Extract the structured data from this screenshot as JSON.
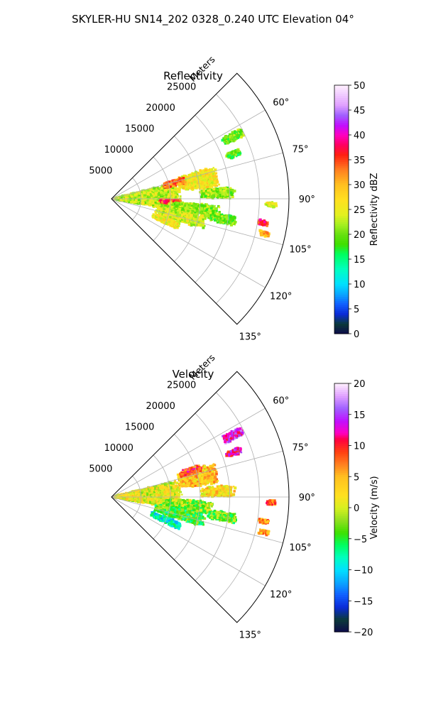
{
  "figure": {
    "suptitle": "SKYLER-HU  SN14_202  0328_0.240 UTC Elevation 04°"
  },
  "chart_data": [
    {
      "type": "polar-sector-heatmap",
      "title": "Reflectivity",
      "rlabel": "Meters",
      "theta_range_deg": [
        45,
        135
      ],
      "r_range_m": [
        0,
        30000
      ],
      "r_ticks": [
        5000,
        10000,
        15000,
        20000,
        25000
      ],
      "r_tick_labels": [
        "5000",
        "10000",
        "15000",
        "20000",
        "25000"
      ],
      "theta_ticks": [
        60,
        75,
        90,
        105,
        120,
        135
      ],
      "theta_tick_labels": [
        "60°",
        "75°",
        "90°",
        "105°",
        "120°",
        "135°"
      ],
      "grid": true,
      "colorbar": {
        "label": "Reflectivity dBZ",
        "range": [
          0,
          50
        ],
        "ticks": [
          0,
          5,
          10,
          15,
          20,
          25,
          30,
          35,
          40,
          45,
          50
        ],
        "tick_labels": [
          "0",
          "5",
          "10",
          "15",
          "20",
          "25",
          "30",
          "35",
          "40",
          "45",
          "50"
        ],
        "stops": [
          {
            "v": 0,
            "c": "#0d0a4a"
          },
          {
            "v": 2,
            "c": "#0b3a3a"
          },
          {
            "v": 4,
            "c": "#0a2bd8"
          },
          {
            "v": 6,
            "c": "#1060ff"
          },
          {
            "v": 8,
            "c": "#0aa6ff"
          },
          {
            "v": 10,
            "c": "#00e0ff"
          },
          {
            "v": 13,
            "c": "#00ffc0"
          },
          {
            "v": 16,
            "c": "#00ff60"
          },
          {
            "v": 18,
            "c": "#3ee000"
          },
          {
            "v": 20,
            "c": "#66e010"
          },
          {
            "v": 22,
            "c": "#a6f020"
          },
          {
            "v": 24,
            "c": "#e4f020"
          },
          {
            "v": 27,
            "c": "#ffe020"
          },
          {
            "v": 30,
            "c": "#ffc020"
          },
          {
            "v": 33,
            "c": "#ff8020"
          },
          {
            "v": 36,
            "c": "#ff2010"
          },
          {
            "v": 38,
            "c": "#ff0060"
          },
          {
            "v": 40,
            "c": "#ff00c0"
          },
          {
            "v": 42,
            "c": "#c010ff"
          },
          {
            "v": 44,
            "c": "#a060ff"
          },
          {
            "v": 46,
            "c": "#e0a0ff"
          },
          {
            "v": 50,
            "c": "#fff0ff"
          }
        ]
      },
      "echoes": [
        {
          "th": 88,
          "r": 6000,
          "dth": 26,
          "dr": 12000,
          "v": 23
        },
        {
          "th": 78,
          "r": 15000,
          "dth": 12,
          "dr": 7000,
          "v": 26
        },
        {
          "th": 76,
          "r": 11000,
          "dth": 6,
          "dr": 4000,
          "v": 33
        },
        {
          "th": 93,
          "r": 10000,
          "dth": 5,
          "dr": 4000,
          "v": 35
        },
        {
          "th": 97,
          "r": 14000,
          "dth": 8,
          "dr": 9000,
          "v": 21
        },
        {
          "th": 87,
          "r": 18000,
          "dth": 6,
          "dr": 6000,
          "v": 21
        },
        {
          "th": 104,
          "r": 12000,
          "dth": 9,
          "dr": 9000,
          "v": 24
        },
        {
          "th": 112,
          "r": 10000,
          "dth": 6,
          "dr": 5000,
          "v": 26
        },
        {
          "th": 63,
          "r": 23000,
          "dth": 4,
          "dr": 4000,
          "v": 20
        },
        {
          "th": 70,
          "r": 22000,
          "dth": 3,
          "dr": 3000,
          "v": 19
        },
        {
          "th": 100,
          "r": 19000,
          "dth": 5,
          "dr": 5000,
          "v": 20
        },
        {
          "th": 99,
          "r": 26000,
          "dth": 2,
          "dr": 2000,
          "v": 37
        },
        {
          "th": 103,
          "r": 26500,
          "dth": 2,
          "dr": 2000,
          "v": 30
        },
        {
          "th": 92,
          "r": 27000,
          "dth": 2,
          "dr": 2000,
          "v": 25
        }
      ]
    },
    {
      "type": "polar-sector-heatmap",
      "title": "Velocity",
      "rlabel": "Meters",
      "theta_range_deg": [
        45,
        135
      ],
      "r_range_m": [
        0,
        30000
      ],
      "r_ticks": [
        5000,
        10000,
        15000,
        20000,
        25000
      ],
      "r_tick_labels": [
        "5000",
        "10000",
        "15000",
        "20000",
        "25000"
      ],
      "theta_ticks": [
        60,
        75,
        90,
        105,
        120,
        135
      ],
      "theta_tick_labels": [
        "60°",
        "75°",
        "90°",
        "105°",
        "120°",
        "135°"
      ],
      "grid": true,
      "colorbar": {
        "label": "Velocity (m/s)",
        "range": [
          -20,
          20
        ],
        "ticks": [
          -20,
          -15,
          -10,
          -5,
          0,
          5,
          10,
          15,
          20
        ],
        "tick_labels": [
          "−20",
          "−15",
          "−10",
          "−5",
          "0",
          "5",
          "10",
          "15",
          "20"
        ],
        "stops": [
          {
            "v": -20,
            "c": "#0d0a4a"
          },
          {
            "v": -18,
            "c": "#0b3a3a"
          },
          {
            "v": -16,
            "c": "#0a2bd8"
          },
          {
            "v": -14,
            "c": "#1060ff"
          },
          {
            "v": -12,
            "c": "#0aa6ff"
          },
          {
            "v": -10,
            "c": "#00e0ff"
          },
          {
            "v": -8,
            "c": "#00ffc0"
          },
          {
            "v": -6,
            "c": "#00ff60"
          },
          {
            "v": -4,
            "c": "#3ee000"
          },
          {
            "v": -2,
            "c": "#90e020"
          },
          {
            "v": 0,
            "c": "#d8f020"
          },
          {
            "v": 2,
            "c": "#ffe020"
          },
          {
            "v": 5,
            "c": "#ffc020"
          },
          {
            "v": 7,
            "c": "#ff8020"
          },
          {
            "v": 9,
            "c": "#ff4010"
          },
          {
            "v": 11,
            "c": "#ff0040"
          },
          {
            "v": 12,
            "c": "#ff00c0"
          },
          {
            "v": 14,
            "c": "#c010ff"
          },
          {
            "v": 16,
            "c": "#a060ff"
          },
          {
            "v": 18,
            "c": "#e0a0ff"
          },
          {
            "v": 20,
            "c": "#fff0ff"
          }
        ]
      },
      "echoes": [
        {
          "th": 88,
          "r": 6000,
          "dth": 26,
          "dr": 12000,
          "v": 1
        },
        {
          "th": 77,
          "r": 15000,
          "dth": 12,
          "dr": 7000,
          "v": 4
        },
        {
          "th": 72,
          "r": 14000,
          "dth": 5,
          "dr": 4000,
          "v": 9
        },
        {
          "th": 96,
          "r": 13000,
          "dth": 8,
          "dr": 9000,
          "v": -2
        },
        {
          "th": 104,
          "r": 12000,
          "dth": 9,
          "dr": 9000,
          "v": -4
        },
        {
          "th": 113,
          "r": 10000,
          "dth": 6,
          "dr": 6000,
          "v": -9
        },
        {
          "th": 63,
          "r": 23000,
          "dth": 4,
          "dr": 4000,
          "v": 14
        },
        {
          "th": 70,
          "r": 22000,
          "dth": 3,
          "dr": 3000,
          "v": 12
        },
        {
          "th": 87,
          "r": 18000,
          "dth": 6,
          "dr": 6000,
          "v": 3
        },
        {
          "th": 100,
          "r": 19000,
          "dth": 5,
          "dr": 5000,
          "v": -3
        },
        {
          "th": 99,
          "r": 26000,
          "dth": 2,
          "dr": 2000,
          "v": 6
        },
        {
          "th": 103,
          "r": 26500,
          "dth": 2,
          "dr": 2000,
          "v": 5
        },
        {
          "th": 92,
          "r": 27000,
          "dth": 2,
          "dr": 2000,
          "v": 8
        }
      ]
    }
  ]
}
